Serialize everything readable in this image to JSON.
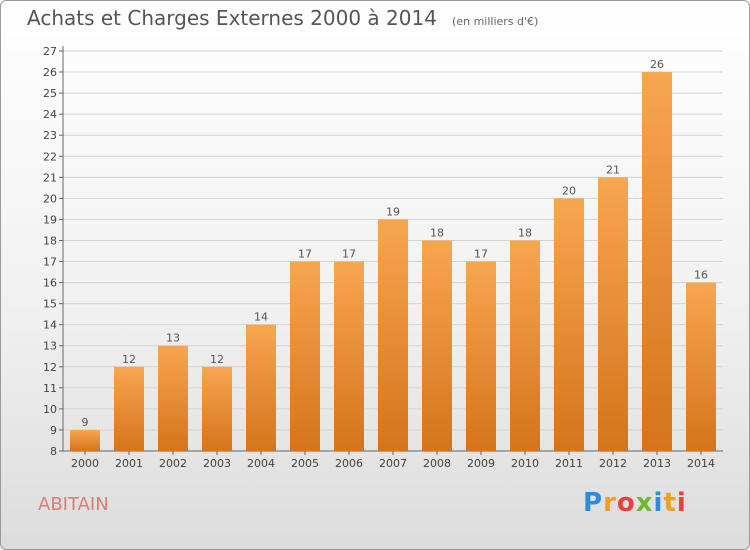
{
  "chart_data": {
    "type": "bar",
    "title": "Achats et Charges Externes 2000 à 2014",
    "subtitle": "(en milliers d'€)",
    "categories": [
      "2000",
      "2001",
      "2002",
      "2003",
      "2004",
      "2005",
      "2006",
      "2007",
      "2008",
      "2009",
      "2010",
      "2011",
      "2012",
      "2013",
      "2014"
    ],
    "values": [
      9,
      12,
      13,
      12,
      14,
      17,
      17,
      19,
      18,
      17,
      18,
      20,
      21,
      26,
      16
    ],
    "ylim": [
      8,
      27
    ],
    "yticks": [
      8,
      9,
      10,
      11,
      12,
      13,
      14,
      15,
      16,
      17,
      18,
      19,
      20,
      21,
      22,
      23,
      24,
      25,
      26,
      27
    ],
    "grid": true,
    "bar_color_top": "#f7a650",
    "bar_color_bottom": "#d5741c"
  },
  "place_name": "ABITAIN",
  "logo": {
    "letters": [
      "P",
      "r",
      "o",
      "x",
      "i",
      "t",
      "i"
    ],
    "colors": [
      "#2e8bd8",
      "#f0a020",
      "#e8403a",
      "#70b830",
      "#2e8bd8",
      "#f0a020",
      "#e8403a"
    ]
  }
}
